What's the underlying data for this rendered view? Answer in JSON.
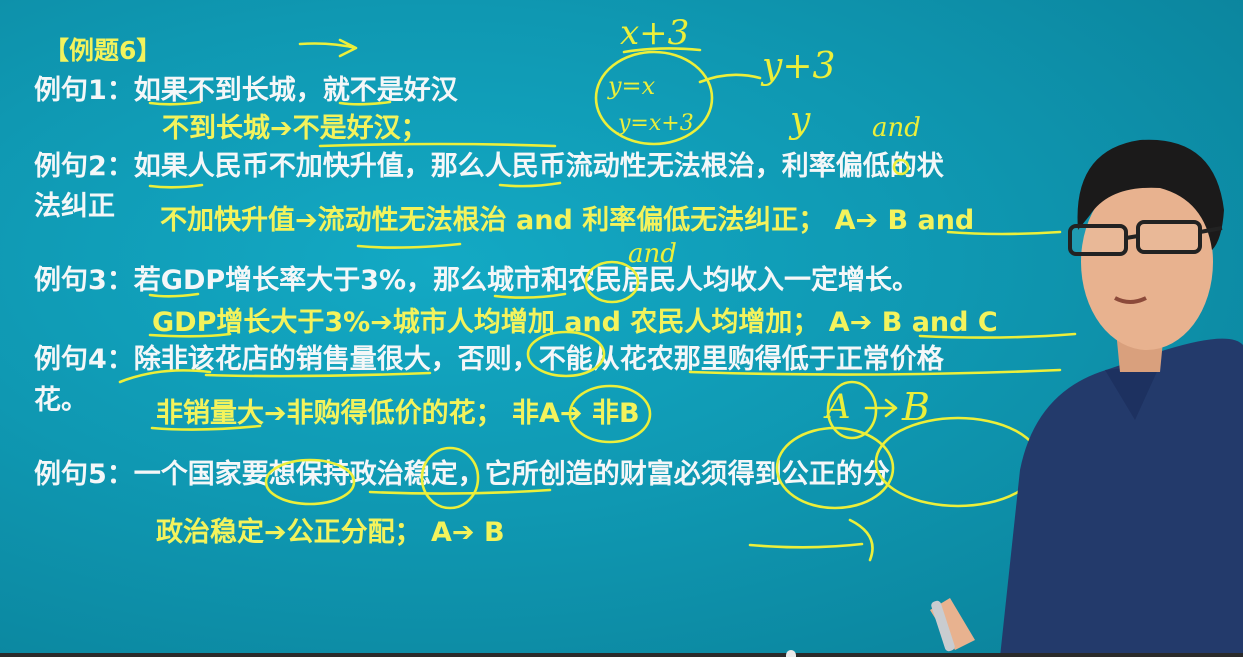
{
  "slide": {
    "title": "【例题6】",
    "lines": [
      {
        "label": "例句1：",
        "text": "如果不到长城，就不是好汉"
      },
      {
        "text": "不到长城➔不是好汉；"
      },
      {
        "label": "例句2：",
        "text": "如果人民币不加快升值，那么人民币流动性无法根治，利率偏低的状"
      },
      {
        "text": "法纠正"
      },
      {
        "text": "不加快升值➔流动性无法根治 and 利率偏低无法纠正；  A➔ B and"
      },
      {
        "label": "例句3：",
        "text": "若GDP增长率大于3%，那么城市和农民居民人均收入一定增长。"
      },
      {
        "text": "GDP增长大于3%➔城市人均增加 and 农民人均增加；  A➔ B and C"
      },
      {
        "label": "例句4：",
        "text": "除非该花店的销售量很大，否则，不能从花农那里购得低于正常价格"
      },
      {
        "text": "花。"
      },
      {
        "text": "非销量大➔非购得低价的花；  非A➔ 非B"
      },
      {
        "label": "例句5：",
        "text": "一个国家要想保持政治稳定，它所创造的财富必须得到公正的分"
      },
      {
        "text": "政治稳定➔公正分配；  A➔ B"
      }
    ]
  },
  "handwriting": {
    "top_expr": "x+3",
    "right_expr_1": "y+3",
    "right_expr_2": "y",
    "circle_expr_1": "y=x",
    "circle_expr_2": "y=x+3",
    "and_1": "and",
    "and_2": "and",
    "arrow_a": "A",
    "arrow_b": "B"
  },
  "colors": {
    "background": "#0f98b2",
    "text_white": "#f4f7f8",
    "text_yellow": "#f3f35c",
    "ink": "#ecef3a",
    "shirt": "#233a6b",
    "hair": "#1b1a1a",
    "skin": "#e8b28f"
  }
}
